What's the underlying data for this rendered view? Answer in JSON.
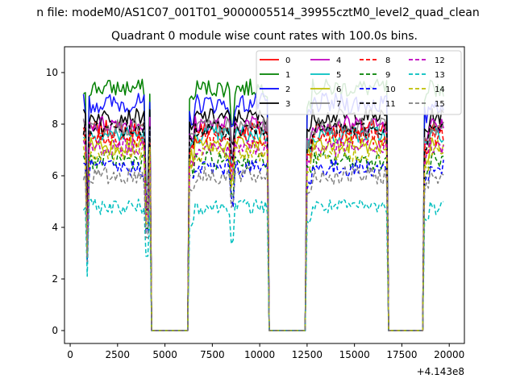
{
  "figure": {
    "suptitle": "n file: modeM0/AS1C07_001T01_9000005514_39955cztM0_level2_quad_clean",
    "title": "Quadrant 0 module wise count rates with 100.0s bins."
  },
  "chart_data": {
    "type": "line",
    "x_offset_label": "+4.143e8",
    "xlim": [
      -300,
      20800
    ],
    "ylim": [
      -0.5,
      11.0
    ],
    "xticks": [
      0,
      2500,
      5000,
      7500,
      10000,
      12500,
      15000,
      17500,
      20000
    ],
    "yticks": [
      0,
      2,
      4,
      6,
      8,
      10
    ],
    "legend": {
      "placement": "top-right",
      "columns": 4
    },
    "gaps": [
      [
        4200,
        6300
      ],
      [
        10400,
        12500
      ],
      [
        16700,
        18700
      ]
    ],
    "segments": [
      {
        "start": 700,
        "end": 4200
      },
      {
        "start": 6300,
        "end": 10400
      },
      {
        "start": 12500,
        "end": 16700
      },
      {
        "start": 18700,
        "end": 19700
      }
    ],
    "series": [
      {
        "name": "0",
        "color": "#ff0000",
        "dash": "solid",
        "level": 7.8,
        "noise": 0.35
      },
      {
        "name": "1",
        "color": "#008000",
        "dash": "solid",
        "level": 9.4,
        "noise": 0.35
      },
      {
        "name": "2",
        "color": "#0000ff",
        "dash": "solid",
        "level": 8.8,
        "noise": 0.4
      },
      {
        "name": "3",
        "color": "#000000",
        "dash": "solid",
        "level": 8.3,
        "noise": 0.3
      },
      {
        "name": "4",
        "color": "#bf00bf",
        "dash": "solid",
        "level": 8.0,
        "noise": 0.35
      },
      {
        "name": "5",
        "color": "#00bfbf",
        "dash": "solid",
        "level": 7.6,
        "noise": 0.35
      },
      {
        "name": "6",
        "color": "#bfbf00",
        "dash": "solid",
        "level": 7.2,
        "noise": 0.35
      },
      {
        "name": "7",
        "color": "#808080",
        "dash": "solid",
        "level": 7.9,
        "noise": 0.35
      },
      {
        "name": "8",
        "color": "#ff0000",
        "dash": "dashed",
        "level": 7.5,
        "noise": 0.35
      },
      {
        "name": "9",
        "color": "#008000",
        "dash": "dashed",
        "level": 6.6,
        "noise": 0.35
      },
      {
        "name": "10",
        "color": "#0000ff",
        "dash": "dashed",
        "level": 6.3,
        "noise": 0.35
      },
      {
        "name": "11",
        "color": "#000000",
        "dash": "dashed",
        "level": 7.8,
        "noise": 0.3
      },
      {
        "name": "12",
        "color": "#bf00bf",
        "dash": "dashed",
        "level": 7.1,
        "noise": 0.35
      },
      {
        "name": "13",
        "color": "#00bfbf",
        "dash": "dashed",
        "level": 4.8,
        "noise": 0.3
      },
      {
        "name": "14",
        "color": "#bfbf00",
        "dash": "dashed",
        "level": 6.9,
        "noise": 0.35
      },
      {
        "name": "15",
        "color": "#808080",
        "dash": "dashed",
        "level": 6.0,
        "noise": 0.35
      }
    ]
  }
}
